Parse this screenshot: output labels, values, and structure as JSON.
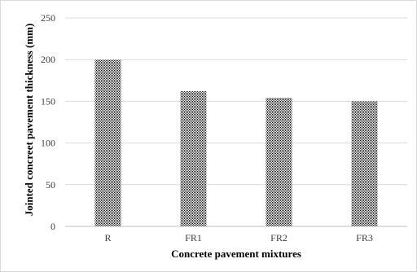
{
  "chart_data": {
    "type": "bar",
    "title": "",
    "xlabel": "Concrete pavement mixtures",
    "ylabel": "Jointed concreet pavement thickness (mm)",
    "categories": [
      "R",
      "FR1",
      "FR2",
      "FR3"
    ],
    "values": [
      200,
      162,
      154,
      150
    ],
    "ylim": [
      0,
      250
    ],
    "yticks": [
      "0",
      "50",
      "100",
      "150",
      "200",
      "250"
    ],
    "grid": true,
    "legend": "none",
    "bar_pattern": "dotted",
    "colors": {
      "bar_dots": "#000000",
      "grid": "#d9d9d9",
      "axis": "#bfbfbf"
    }
  }
}
